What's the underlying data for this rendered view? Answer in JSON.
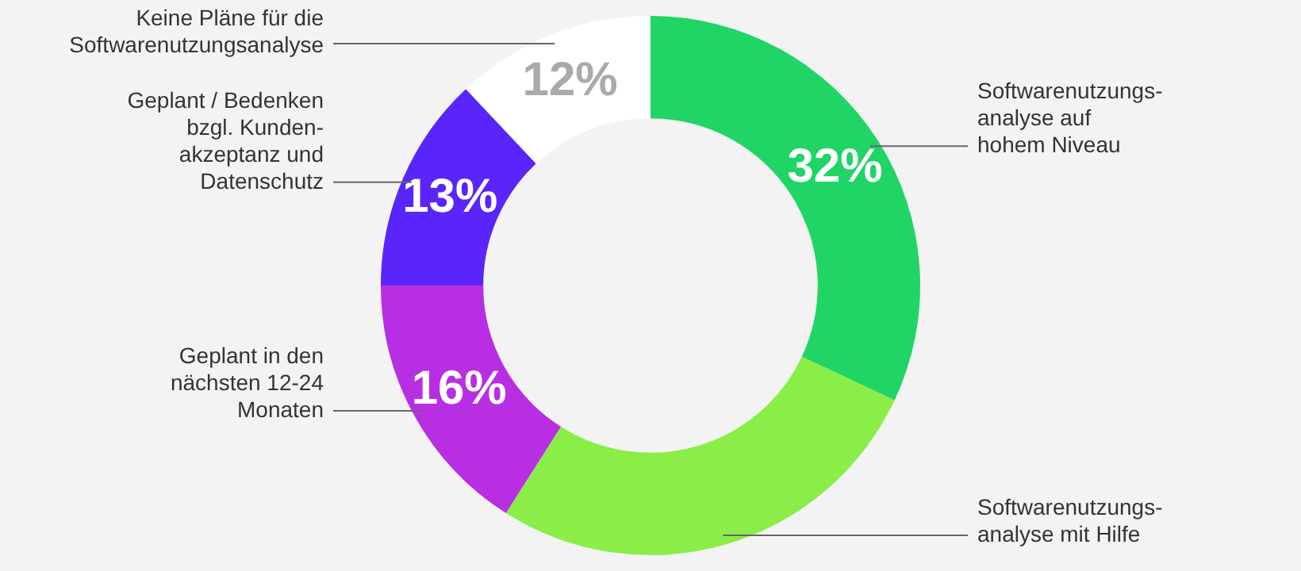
{
  "chart_data": {
    "type": "donut",
    "categories": [
      "Softwarenutzungs-\nanalyse auf\nhohem Niveau",
      "Softwarenutzungs-\nanalyse mit Hilfe",
      "Geplant in den\nnächsten 12-24\nMonaten",
      "Geplant / Bedenken\nbzgl. Kunden-\nakzeptanz und\nDatenschutz",
      "Keine Pläne für die\nSoftwarenutzungsanalyse"
    ],
    "values": [
      32,
      27,
      16,
      13,
      12
    ],
    "colors": [
      "#20d566",
      "#8bed48",
      "#b82fe3",
      "#5a25fa",
      "#ffffff"
    ],
    "value_labels": [
      "32%",
      null,
      "16%",
      "13%",
      "12%"
    ]
  }
}
